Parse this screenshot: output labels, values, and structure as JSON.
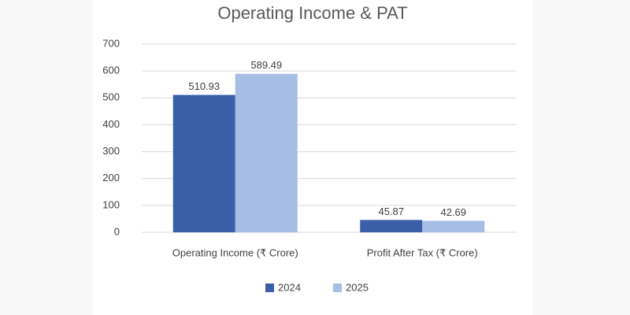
{
  "chart_data": {
    "type": "bar",
    "title": "Operating Income & PAT",
    "categories": [
      "Operating Income (₹ Crore)",
      "Profit After Tax (₹ Crore)"
    ],
    "series": [
      {
        "name": "2024",
        "color": "#3a5ea8",
        "values": [
          510.93,
          45.87
        ]
      },
      {
        "name": "2025",
        "color": "#a6bde6",
        "values": [
          589.49,
          42.69
        ]
      }
    ],
    "ylim": [
      0,
      700
    ],
    "yticks": [
      0,
      100,
      200,
      300,
      400,
      500,
      600,
      700
    ],
    "grid": true,
    "legend": "bottom"
  }
}
